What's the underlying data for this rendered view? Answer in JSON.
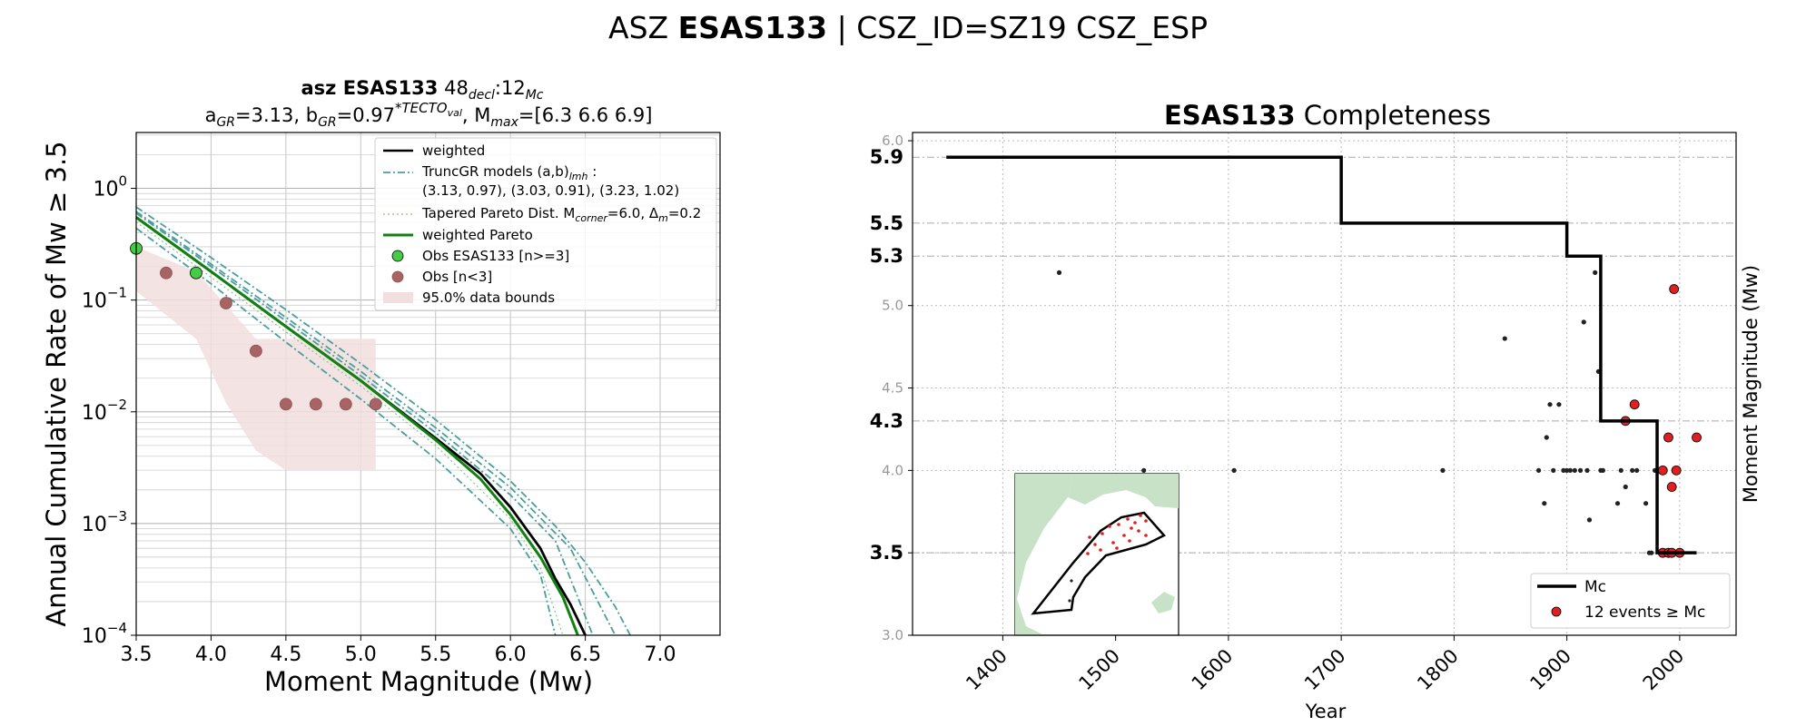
{
  "figure": {
    "title_prefix": "ASZ ",
    "title_bold": "ESAS133",
    "title_suffix": " | CSZ_ID=SZ19 CSZ_ESP"
  },
  "chart_data": [
    {
      "type": "line",
      "title_line1": {
        "bold": "asz ESAS133",
        "space": "  48",
        "sub1": "decl",
        "colon": ":12",
        "sub2": "Mc"
      },
      "title_line2": {
        "a": "a",
        "a_sub": "GR",
        "a_val": "=3.13,  b",
        "b_sub": "GR",
        "b_val": "=0.97",
        "sup": "*TECTO",
        "sup_sub": "val",
        "mmax": ", M",
        "mmax_sub": "max",
        "mmax_val": "=[6.3 6.6 6.9]"
      },
      "xlabel": "Moment Magnitude (Mw)",
      "ylabel": "Annual Cumulative Rate of Mw  ≥  3.5",
      "xlim": [
        3.5,
        7.4
      ],
      "ylim_log10": [
        -4,
        0.5
      ],
      "log_y": true,
      "grid": true,
      "x_ticks": [
        "3.5",
        "4.0",
        "4.5",
        "5.0",
        "5.5",
        "6.0",
        "6.5",
        "7.0"
      ],
      "y_ticks": [
        {
          "base": "10",
          "exp": "0"
        },
        {
          "base": "10",
          "exp": "−1"
        },
        {
          "base": "10",
          "exp": "−2"
        },
        {
          "base": "10",
          "exp": "−3"
        },
        {
          "base": "10",
          "exp": "−4"
        }
      ],
      "legend_position": "top-right",
      "legend": {
        "weighted": "weighted",
        "trunc1": "TruncGR models (a,b)",
        "trunc1_sub": "lmh",
        "trunc1_tail": " :",
        "trunc2": " (3.13, 0.97), (3.03, 0.91), (3.23, 1.02)",
        "tapered": "Tapered Pareto Dist. M",
        "tapered_sub1": "corner",
        "tapered_mid": "=6.0, Δ",
        "tapered_sub2": "m",
        "tapered_tail": "=0.2",
        "pareto": "weighted Pareto",
        "obs_green": "Obs ESAS133 [n>=3]",
        "obs_brown": "Obs [n<3]",
        "bounds": "95.0% data bounds"
      },
      "colors": {
        "weighted": "#000000",
        "trunc": "#4a9e9e",
        "pareto": "#108010",
        "obs_green": "#44cc44",
        "obs_brown": "#a86464",
        "bounds": "#f2dede"
      },
      "series": {
        "weighted": {
          "x": [
            3.5,
            4.0,
            4.5,
            5.0,
            5.5,
            5.8,
            6.0,
            6.2,
            6.3,
            6.4,
            6.5
          ],
          "y": [
            0.55,
            0.18,
            0.058,
            0.019,
            0.0058,
            0.0028,
            0.0014,
            0.0006,
            0.00032,
            0.00019,
            0.0001
          ]
        },
        "weighted_pareto": {
          "x": [
            3.5,
            4.0,
            4.5,
            5.0,
            5.5,
            5.8,
            6.0,
            6.2,
            6.35,
            6.45
          ],
          "y": [
            0.55,
            0.18,
            0.058,
            0.019,
            0.0056,
            0.0025,
            0.0012,
            0.0005,
            0.00022,
            0.0001
          ]
        },
        "trunc_upper": {
          "x": [
            3.5,
            4.0,
            4.5,
            5.0,
            5.5,
            6.0,
            6.3,
            6.5,
            6.7,
            6.8
          ],
          "y": [
            0.68,
            0.24,
            0.082,
            0.027,
            0.0085,
            0.0024,
            0.00095,
            0.00045,
            0.00018,
            0.0001
          ]
        },
        "trunc_lower": {
          "x": [
            3.5,
            4.0,
            4.5,
            5.0,
            5.5,
            6.0,
            6.2,
            6.3
          ],
          "y": [
            0.44,
            0.14,
            0.042,
            0.013,
            0.0038,
            0.0009,
            0.00035,
            0.0001
          ]
        },
        "trunc_mid2": {
          "x": [
            3.5,
            4.0,
            4.5,
            5.0,
            5.5,
            6.0,
            6.3,
            6.55
          ],
          "y": [
            0.6,
            0.2,
            0.065,
            0.021,
            0.0065,
            0.0018,
            0.0007,
            0.0001
          ]
        },
        "trunc_mid3": {
          "x": [
            3.5,
            4.0,
            4.5,
            5.0,
            5.5,
            6.0,
            6.4,
            6.7
          ],
          "y": [
            0.62,
            0.21,
            0.07,
            0.023,
            0.0072,
            0.0021,
            0.0006,
            0.0001
          ]
        },
        "tapered": {
          "x": [
            3.5,
            4.0,
            4.5,
            5.0,
            5.5,
            6.0,
            6.2,
            6.35
          ],
          "y": [
            0.5,
            0.16,
            0.052,
            0.017,
            0.005,
            0.0011,
            0.0004,
            0.0001
          ]
        },
        "bounds_upper": {
          "x": [
            3.5,
            3.9,
            4.1,
            4.3,
            4.5,
            4.9,
            5.1
          ],
          "y": [
            0.3,
            0.18,
            0.09,
            0.045,
            0.045,
            0.045,
            0.045
          ]
        },
        "bounds_lower": {
          "x": [
            3.5,
            3.9,
            4.1,
            4.3,
            4.5,
            4.9,
            5.1
          ],
          "y": [
            0.12,
            0.045,
            0.012,
            0.0045,
            0.003,
            0.003,
            0.003
          ]
        },
        "obs_green": {
          "x": [
            3.5,
            3.9
          ],
          "y": [
            0.29,
            0.175
          ]
        },
        "obs_brown": {
          "x": [
            3.7,
            4.1,
            4.3,
            4.5,
            4.7,
            4.9,
            5.1
          ],
          "y": [
            0.175,
            0.094,
            0.035,
            0.0117,
            0.0117,
            0.0117,
            0.0117
          ]
        }
      }
    },
    {
      "type": "scatter",
      "title_bold": "ESAS133",
      "title_rest": " Completeness",
      "xlabel": "Year",
      "ylabel": "Moment Magnitude (Mw)",
      "xlim": [
        1320,
        2050
      ],
      "ylim": [
        3.0,
        6.05
      ],
      "x_ticks": [
        "1400",
        "1500",
        "1600",
        "1700",
        "1800",
        "1900",
        "2000"
      ],
      "y_ticks_minor": [
        "3.0",
        "3.5",
        "4.0",
        "4.5",
        "5.0",
        "6.0"
      ],
      "y_ticks_major": [
        "3.5",
        "4.3",
        "5.3",
        "5.5",
        "5.9"
      ],
      "legend_position": "bottom-right",
      "legend": {
        "mc": "Mc",
        "events": "12 events  ≥  Mc"
      },
      "colors": {
        "mc": "#000000",
        "event": "#e02020",
        "small": "#222222",
        "map_land": "#c8e2c8"
      },
      "mc_steps": {
        "year": [
          1350,
          1700,
          1700,
          1900,
          1900,
          1930,
          1930,
          1980,
          1980,
          2015
        ],
        "mw": [
          5.9,
          5.9,
          5.5,
          5.5,
          5.3,
          5.3,
          4.3,
          4.3,
          3.5,
          3.5
        ]
      },
      "small_events": {
        "year": [
          1450,
          1525,
          1605,
          1790,
          1845,
          1875,
          1880,
          1882,
          1885,
          1888,
          1893,
          1897,
          1900,
          1903,
          1907,
          1912,
          1915,
          1918,
          1920,
          1925,
          1928,
          1930,
          1932,
          1945,
          1948,
          1952,
          1958,
          1962,
          1970,
          1973,
          1975,
          1978
        ],
        "mw": [
          5.2,
          4.0,
          4.0,
          4.0,
          4.8,
          4.0,
          3.8,
          4.2,
          4.4,
          4.0,
          4.4,
          4.0,
          4.0,
          4.0,
          4.0,
          4.0,
          4.9,
          4.0,
          3.7,
          5.2,
          4.6,
          4.0,
          4.0,
          3.8,
          4.0,
          3.9,
          4.0,
          4.0,
          3.8,
          3.5,
          3.5,
          4.0
        ]
      },
      "events": {
        "year": [
          1952,
          1960,
          1985,
          1990,
          1993,
          1995,
          2015,
          1985,
          1990,
          1993,
          1997,
          2000
        ],
        "mw": [
          4.3,
          4.4,
          4.0,
          4.2,
          3.9,
          5.1,
          4.2,
          3.5,
          3.5,
          3.5,
          4.0,
          3.5
        ]
      }
    }
  ]
}
